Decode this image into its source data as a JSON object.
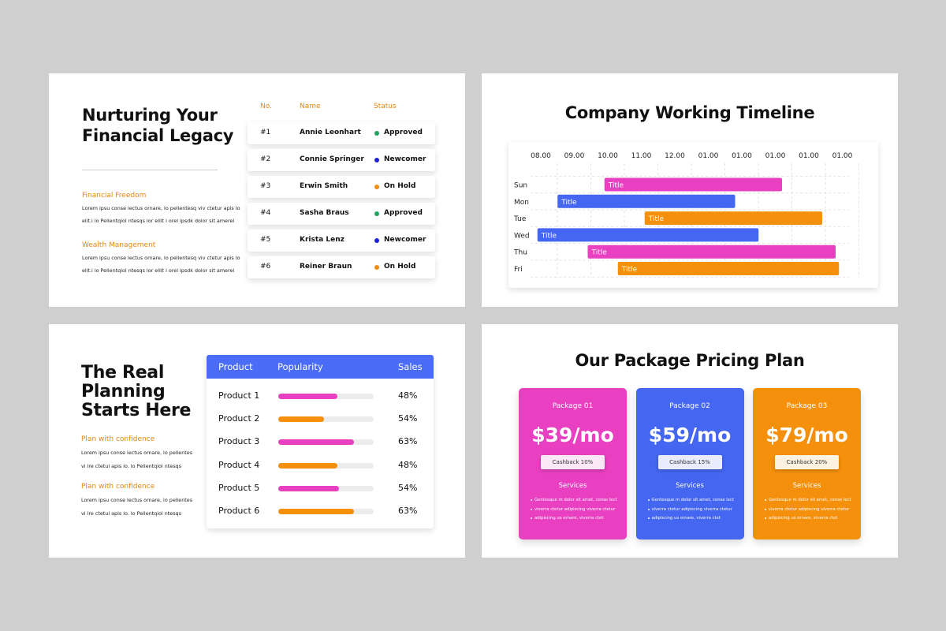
{
  "financial": {
    "title": "Nurturing Your\nFinancial Legacy",
    "sections": [
      {
        "heading": "Financial Freedom",
        "lines": [
          "Lorem ipsu conse lectus ornare, lo pellentesq viv ctetur apis lo",
          "elit.i lo Pellentqiol ntesqs lor ellit i orel ipsdk dolor sit amerel"
        ]
      },
      {
        "heading": "Wealth Management",
        "lines": [
          "Lorem ipsu conse lectus ornare, lo pellentesq viv ctetur apis lo",
          "elit.i lo Pellentqiol ntesqs lor ellit i orel ipsdk dolor sit amerel"
        ]
      }
    ],
    "table": {
      "headers": [
        "No.",
        "Name",
        "Status"
      ],
      "rows": [
        {
          "no": "#1",
          "name": "Annie Leonhart",
          "status": "Approved",
          "dot_color": "#1fa85a"
        },
        {
          "no": "#2",
          "name": "Connie Springer",
          "status": "Newcomer",
          "dot_color": "#1a22d8"
        },
        {
          "no": "#3",
          "name": "Erwin Smith",
          "status": "On Hold",
          "dot_color": "#f28c0f"
        },
        {
          "no": "#4",
          "name": "Sasha Braus",
          "status": "Approved",
          "dot_color": "#1fa85a"
        },
        {
          "no": "#5",
          "name": "Krista Lenz",
          "status": "Newcomer",
          "dot_color": "#1a22d8"
        },
        {
          "no": "#6",
          "name": "Reiner Braun",
          "status": "On Hold",
          "dot_color": "#f28c0f"
        }
      ]
    }
  },
  "timeline": {
    "type": "gantt",
    "title": "Company Working Timeline",
    "xticks": [
      {
        "value": 0,
        "label": "08.00"
      },
      {
        "value": 1,
        "label": "09.00"
      },
      {
        "value": 2,
        "label": "10.00"
      },
      {
        "value": 3,
        "label": "11.00"
      },
      {
        "value": 4,
        "label": "12.00"
      },
      {
        "value": 5,
        "label": "01.00"
      },
      {
        "value": 6,
        "label": "01.00"
      },
      {
        "value": 7,
        "label": "01.00"
      },
      {
        "value": 8,
        "label": "01.00"
      },
      {
        "value": 9,
        "label": "01.00"
      }
    ],
    "xlim": [
      -0.3,
      9.2
    ],
    "categories": [
      "Sun",
      "Mon",
      "Tue",
      "Wed",
      "Thu",
      "Fri"
    ],
    "bars": [
      {
        "label": "Title",
        "start": 1.9,
        "end": 7.2,
        "color": "#e840c0"
      },
      {
        "label": "Title",
        "start": 0.5,
        "end": 5.8,
        "color": "#4466f0"
      },
      {
        "label": "Title",
        "start": 3.1,
        "end": 8.4,
        "color": "#f4900c"
      },
      {
        "label": "Title",
        "start": -0.1,
        "end": 6.5,
        "color": "#4466f0"
      },
      {
        "label": "Title",
        "start": 1.4,
        "end": 8.8,
        "color": "#e840c0"
      },
      {
        "label": "Title",
        "start": 2.3,
        "end": 8.9,
        "color": "#f4900c"
      }
    ],
    "grid": true
  },
  "planning": {
    "title": "The Real\nPlanning\nStarts Here",
    "sections": [
      {
        "heading": "Plan with confidence",
        "lines": [
          "Lorem ipsu conse lectus ornare, lo pellentes",
          "vi lre ctetul apis lo. lo Pellentqiol ntesqs"
        ]
      },
      {
        "heading": "Plan with confidence",
        "lines": [
          "Lorem ipsu conse lectus ornare, lo pellentes",
          "vi lre ctetul apis lo. lo Pellentqiol ntesqs"
        ]
      }
    ],
    "table": {
      "headers": [
        "Product",
        "Popularity",
        "Sales"
      ],
      "popularity_lim": [
        0,
        100
      ],
      "rows": [
        {
          "product": "Product 1",
          "popularity": 62,
          "sales": "48%",
          "color": "#e840c0"
        },
        {
          "product": "Product 2",
          "popularity": 48,
          "sales": "54%",
          "color": "#f4900c"
        },
        {
          "product": "Product 3",
          "popularity": 79,
          "sales": "63%",
          "color": "#e840c0"
        },
        {
          "product": "Product 4",
          "popularity": 62,
          "sales": "48%",
          "color": "#f4900c"
        },
        {
          "product": "Product 5",
          "popularity": 64,
          "sales": "54%",
          "color": "#e840c0"
        },
        {
          "product": "Product 6",
          "popularity": 79,
          "sales": "63%",
          "color": "#f4900c"
        }
      ]
    }
  },
  "pricing": {
    "title": "Our Package Pricing Plan",
    "packages": [
      {
        "name": "Package 01",
        "price": "$39/mo",
        "cashback": "Cashback 10%",
        "services": "Services",
        "color": "#e840c0",
        "items": [
          "Gentesque m dolor sit amet, conse lect",
          "viverra ctetur adipiscing viverra ctetur",
          "adipiscing us ornare, viverra ctet"
        ]
      },
      {
        "name": "Package 02",
        "price": "$59/mo",
        "cashback": "Cashback 15%",
        "services": "Services",
        "color": "#4466f0",
        "items": [
          "Gentesque m dolor sit amet, conse lect",
          "viverra ctetur adipiscing viverra ctetur",
          "adipiscing us ornare, viverra ctet"
        ]
      },
      {
        "name": "Package 03",
        "price": "$79/mo",
        "cashback": "Cashback 20%",
        "services": "Services",
        "color": "#f4900c",
        "items": [
          "Gentesque m dolor sit amet, conse lect",
          "viverra ctetur adipiscing viverra ctetur",
          "adipiscing us ornare, viverra ctet"
        ]
      }
    ]
  }
}
